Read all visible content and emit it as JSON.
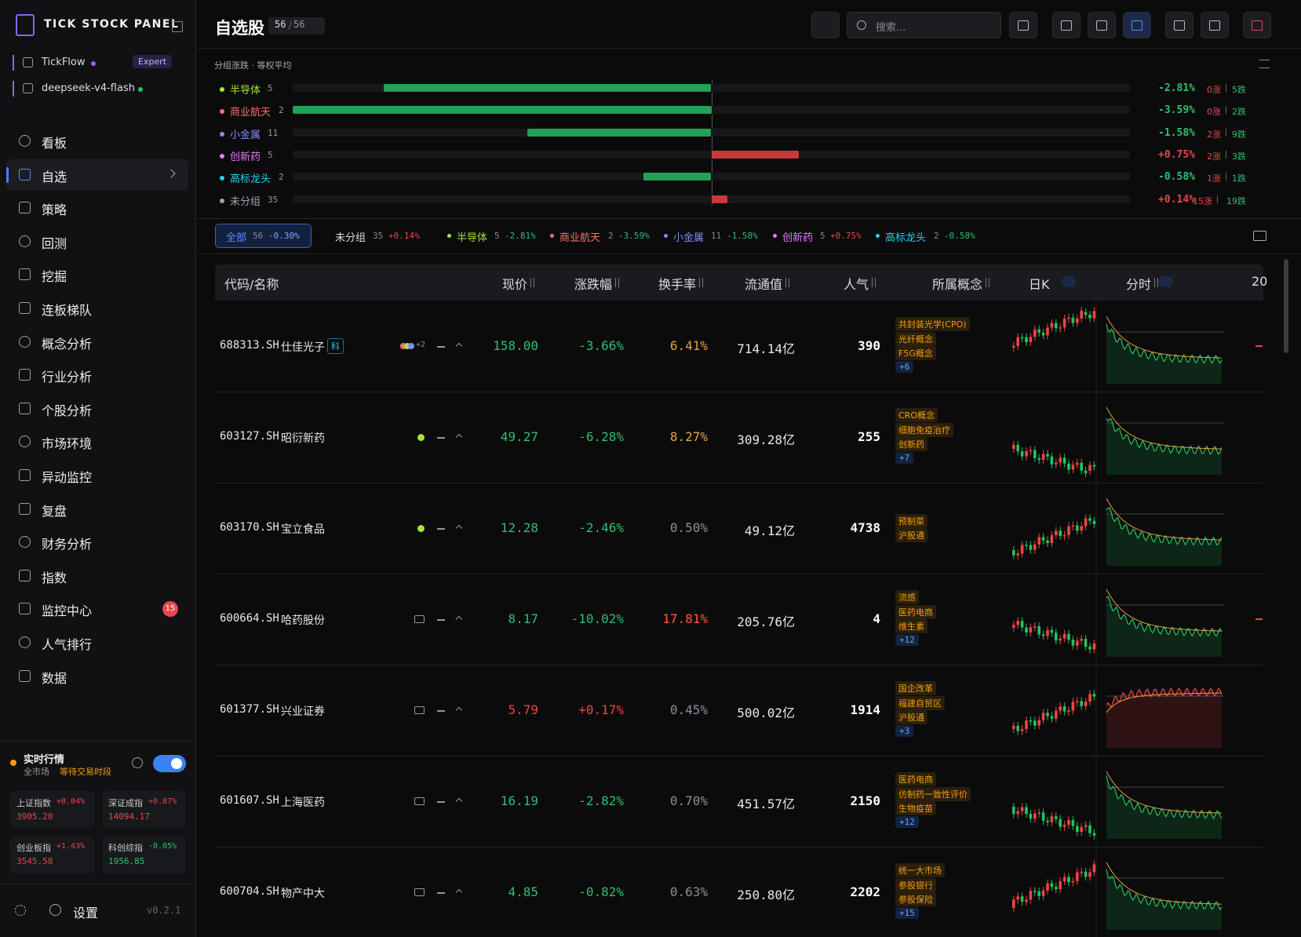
{
  "sidebar": {
    "brand": "TICK STOCK PANEL",
    "sources": [
      {
        "name": "TickFlow",
        "badge": "Expert"
      },
      {
        "name": "deepseek-v4-flash"
      }
    ],
    "nav": [
      {
        "label": "看板"
      },
      {
        "label": "自选",
        "active": true
      },
      {
        "label": "策略"
      },
      {
        "label": "回测"
      },
      {
        "label": "挖掘"
      },
      {
        "label": "连板梯队"
      },
      {
        "label": "概念分析"
      },
      {
        "label": "行业分析"
      },
      {
        "label": "个股分析"
      },
      {
        "label": "市场环境"
      },
      {
        "label": "异动监控"
      },
      {
        "label": "复盘"
      },
      {
        "label": "财务分析"
      },
      {
        "label": "指数"
      },
      {
        "label": "监控中心",
        "badge": "15"
      },
      {
        "label": "人气排行"
      },
      {
        "label": "数据"
      }
    ],
    "realtime": {
      "title": "实时行情",
      "scope": "全市场",
      "status": "等待交易时段"
    },
    "indices": [
      {
        "name": "上证指数",
        "change": "+0.04%",
        "value": "3905.20",
        "color": "#e5484d"
      },
      {
        "name": "深证成指",
        "change": "+0.87%",
        "value": "14094.17",
        "color": "#e5484d"
      },
      {
        "name": "创业板指",
        "change": "+1.43%",
        "value": "3545.58",
        "color": "#e5484d"
      },
      {
        "name": "科创综指",
        "change": "-0.05%",
        "value": "1956.85",
        "color": "#2fbf71"
      }
    ],
    "settings": "设置",
    "version": "v0.2.1"
  },
  "header": {
    "title": "自选股",
    "count": "56",
    "total": "56",
    "search_placeholder": "搜索..."
  },
  "groups": {
    "label": "分组涨跌 · 等权平均",
    "items": [
      {
        "name": "半导体",
        "count": "5",
        "change": -2.81,
        "change_label": "-2.81%",
        "up": "0涨",
        "down": "5跌",
        "color": "#a3e635"
      },
      {
        "name": "商业航天",
        "count": "2",
        "change": -3.59,
        "change_label": "-3.59%",
        "up": "0涨",
        "down": "2跌",
        "color": "#f87171"
      },
      {
        "name": "小金属",
        "count": "11",
        "change": -1.58,
        "change_label": "-1.58%",
        "up": "2涨",
        "down": "9跌",
        "color": "#818cf8"
      },
      {
        "name": "创新药",
        "count": "5",
        "change": 0.75,
        "change_label": "+0.75%",
        "up": "2涨",
        "down": "3跌",
        "color": "#e879f9"
      },
      {
        "name": "高标龙头",
        "count": "2",
        "change": -0.58,
        "change_label": "-0.58%",
        "up": "1涨",
        "down": "1跌",
        "color": "#22d3ee"
      },
      {
        "name": "未分组",
        "count": "35",
        "change": 0.14,
        "change_label": "+0.14%",
        "up": "15涨",
        "down": "19跌",
        "color": "#9ca3af"
      }
    ]
  },
  "tabs": [
    {
      "name": "全部",
      "count": "56",
      "change": "-0.30%"
    },
    {
      "name": "未分组",
      "count": "35",
      "change": "+0.14%"
    },
    {
      "name": "半导体",
      "count": "5",
      "change": "-2.81%"
    },
    {
      "name": "商业航天",
      "count": "2",
      "change": "-3.59%"
    },
    {
      "name": "小金属",
      "count": "11",
      "change": "-1.58%"
    },
    {
      "name": "创新药",
      "count": "5",
      "change": "+0.75%"
    },
    {
      "name": "高标龙头",
      "count": "2",
      "change": "-0.58%"
    }
  ],
  "table": {
    "columns": [
      "代码/名称",
      "现价",
      "涨跌幅",
      "换手率",
      "流通值",
      "人气",
      "所属概念",
      "日K",
      "分时",
      "20"
    ],
    "rows": [
      {
        "code": "688313.SH",
        "name": "仕佳光子",
        "tag": "科",
        "extra": "+2",
        "price": "158.00",
        "change": "-3.66%",
        "turnover": "6.41%",
        "cap": "714.14亿",
        "popularity": "390",
        "concepts": [
          "共封装光学(CPO)",
          "光纤概念",
          "F5G概念"
        ],
        "more": "+6",
        "price_color": "#2fbf71",
        "turnover_color": "#e6a23c"
      },
      {
        "code": "603127.SH",
        "name": "昭衍新药",
        "price": "49.27",
        "change": "-6.28%",
        "turnover": "8.27%",
        "cap": "309.28亿",
        "popularity": "255",
        "concepts": [
          "CRO概念",
          "细胞免疫治疗",
          "创新药"
        ],
        "more": "+7",
        "price_color": "#2fbf71",
        "turnover_color": "#e6a23c"
      },
      {
        "code": "603170.SH",
        "name": "宝立食品",
        "price": "12.28",
        "change": "-2.46%",
        "turnover": "0.50%",
        "cap": "49.12亿",
        "popularity": "4738",
        "concepts": [
          "预制菜",
          "沪股通"
        ],
        "price_color": "#2fbf71",
        "turnover_color": "#8b8f98"
      },
      {
        "code": "600664.SH",
        "name": "哈药股份",
        "price": "8.17",
        "change": "-10.02%",
        "turnover": "17.81%",
        "cap": "205.76亿",
        "popularity": "4",
        "concepts": [
          "流感",
          "医药电商",
          "维生素"
        ],
        "more": "+12",
        "price_color": "#2fbf71",
        "turnover_color": "#ff5b3a"
      },
      {
        "code": "601377.SH",
        "name": "兴业证券",
        "price": "5.79",
        "change": "+0.17%",
        "turnover": "0.45%",
        "cap": "500.02亿",
        "popularity": "1914",
        "concepts": [
          "国企改革",
          "福建自贸区",
          "沪股通"
        ],
        "more": "+3",
        "price_color": "#ef4444",
        "turnover_color": "#8b8f98"
      },
      {
        "code": "601607.SH",
        "name": "上海医药",
        "price": "16.19",
        "change": "-2.82%",
        "turnover": "0.70%",
        "cap": "451.57亿",
        "popularity": "2150",
        "concepts": [
          "医药电商",
          "仿制药一致性评价",
          "生物疫苗"
        ],
        "more": "+12",
        "price_color": "#2fbf71",
        "turnover_color": "#8b8f98"
      },
      {
        "code": "600704.SH",
        "name": "物产中大",
        "price": "4.85",
        "change": "-0.82%",
        "turnover": "0.63%",
        "cap": "250.80亿",
        "popularity": "2202",
        "concepts": [
          "统一大市场",
          "参股银行",
          "参股保险"
        ],
        "more": "+15",
        "price_color": "#2fbf71",
        "turnover_color": "#8b8f98"
      }
    ]
  }
}
